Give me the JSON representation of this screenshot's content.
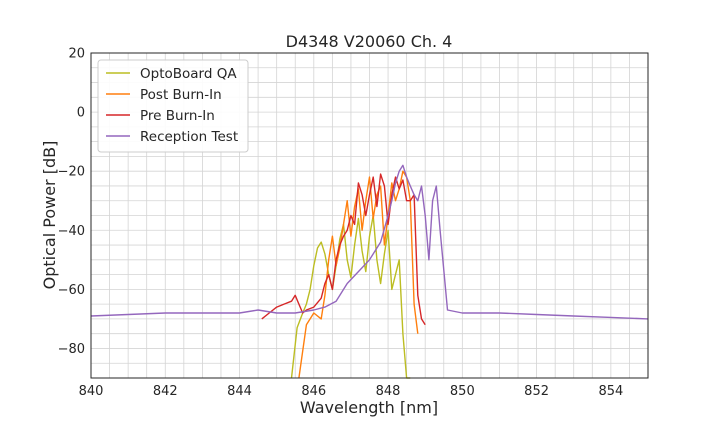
{
  "chart_data": {
    "type": "line",
    "title": "D4348 V20060 Ch. 4",
    "xlabel": "Wavelength [nm]",
    "ylabel": "Optical Power [dB]",
    "xlim": [
      840,
      855
    ],
    "ylim": [
      -90,
      20
    ],
    "xticks": [
      840,
      842,
      844,
      846,
      848,
      850,
      852,
      854
    ],
    "yticks": [
      20,
      0,
      -20,
      -40,
      -60,
      -80
    ],
    "xtick_labels": [
      "840",
      "842",
      "844",
      "846",
      "848",
      "850",
      "852",
      "854"
    ],
    "ytick_labels": [
      "20",
      "0",
      "−20",
      "−40",
      "−60",
      "−80"
    ],
    "grid": true,
    "legend_position": "top-left",
    "series": [
      {
        "name": "OptoBoard QA",
        "color": "#bcbd22",
        "x": [
          845.4,
          845.55,
          845.7,
          845.8,
          845.9,
          846.0,
          846.1,
          846.2,
          846.3,
          846.4,
          846.5,
          846.6,
          846.7,
          846.8,
          846.9,
          847.0,
          847.1,
          847.2,
          847.3,
          847.4,
          847.5,
          847.6,
          847.7,
          847.8,
          847.9,
          848.0,
          848.1,
          848.2,
          848.3,
          848.4,
          848.5,
          848.6
        ],
        "y": [
          -90,
          -73,
          -68,
          -65,
          -60,
          -52,
          -46,
          -44,
          -48,
          -55,
          -60,
          -52,
          -43,
          -38,
          -50,
          -56,
          -45,
          -36,
          -47,
          -54,
          -42,
          -35,
          -50,
          -58,
          -48,
          -40,
          -60,
          -55,
          -50,
          -75,
          -90,
          -90
        ]
      },
      {
        "name": "Post Burn-In",
        "color": "#ff7f0e",
        "x": [
          845.6,
          845.8,
          846.0,
          846.2,
          846.3,
          846.4,
          846.5,
          846.6,
          846.7,
          846.8,
          846.9,
          847.0,
          847.1,
          847.2,
          847.3,
          847.4,
          847.5,
          847.6,
          847.7,
          847.8,
          847.9,
          848.0,
          848.1,
          848.2,
          848.3,
          848.4,
          848.5,
          848.6,
          848.7,
          848.8
        ],
        "y": [
          -90,
          -72,
          -68,
          -70,
          -62,
          -50,
          -42,
          -52,
          -46,
          -38,
          -30,
          -42,
          -32,
          -26,
          -40,
          -30,
          -22,
          -36,
          -28,
          -25,
          -45,
          -35,
          -24,
          -30,
          -26,
          -20,
          -22,
          -30,
          -65,
          -75
        ]
      },
      {
        "name": "Pre Burn-In",
        "color": "#d62728",
        "x": [
          844.6,
          844.8,
          845.0,
          845.2,
          845.4,
          845.5,
          845.6,
          845.7,
          845.8,
          846.0,
          846.2,
          846.3,
          846.4,
          846.5,
          846.6,
          846.7,
          846.8,
          846.9,
          847.0,
          847.1,
          847.2,
          847.3,
          847.4,
          847.5,
          847.6,
          847.7,
          847.8,
          847.9,
          848.0,
          848.1,
          848.2,
          848.3,
          848.4,
          848.5,
          848.6,
          848.7,
          848.8,
          848.9,
          849.0
        ],
        "y": [
          -70,
          -68,
          -66,
          -65,
          -64,
          -62,
          -65,
          -68,
          -67,
          -66,
          -63,
          -58,
          -55,
          -60,
          -50,
          -45,
          -42,
          -40,
          -35,
          -38,
          -24,
          -28,
          -35,
          -28,
          -22,
          -32,
          -21,
          -25,
          -38,
          -28,
          -22,
          -26,
          -23,
          -30,
          -30,
          -28,
          -62,
          -70,
          -72
        ]
      },
      {
        "name": "Reception Test",
        "color": "#9467bd",
        "x": [
          840.0,
          841.0,
          842.0,
          843.0,
          844.0,
          844.5,
          845.0,
          845.5,
          846.0,
          846.3,
          846.6,
          846.9,
          847.2,
          847.5,
          847.8,
          848.0,
          848.1,
          848.2,
          848.3,
          848.4,
          848.5,
          848.6,
          848.7,
          848.8,
          848.9,
          849.0,
          849.1,
          849.2,
          849.3,
          849.4,
          849.6,
          850.0,
          851.0,
          852.0,
          853.0,
          854.0,
          855.0
        ],
        "y": [
          -69,
          -68.5,
          -68,
          -68,
          -68,
          -67,
          -68,
          -68,
          -67,
          -66,
          -64,
          -58,
          -54,
          -50,
          -44,
          -35,
          -30,
          -24,
          -20,
          -18,
          -22,
          -25,
          -28,
          -30,
          -25,
          -35,
          -50,
          -30,
          -25,
          -40,
          -67,
          -68,
          -68,
          -68.5,
          -69,
          -69.5,
          -70
        ]
      }
    ]
  }
}
